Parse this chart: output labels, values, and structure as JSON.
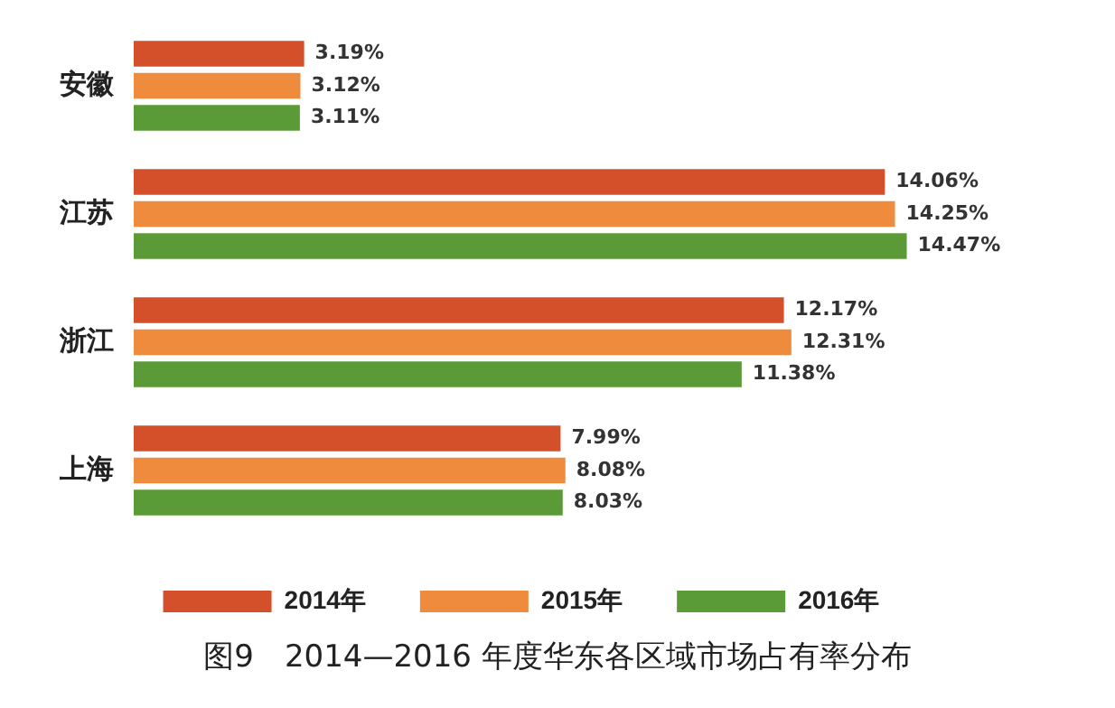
{
  "chart_data": {
    "type": "bar",
    "orientation": "horizontal",
    "title": "图9　2014—2016 年度华东各区域市场占有率分布",
    "categories": [
      "安徽",
      "江苏",
      "浙江",
      "上海"
    ],
    "series": [
      {
        "name": "2014年",
        "color": "#d4502a",
        "values": [
          3.19,
          14.06,
          12.17,
          7.99
        ],
        "value_labels": [
          "3.19%",
          "14.06%",
          "12.17%",
          "7.99%"
        ]
      },
      {
        "name": "2015年",
        "color": "#ee8b3d",
        "values": [
          3.12,
          14.25,
          12.31,
          8.08
        ],
        "value_labels": [
          "3.12%",
          "14.25%",
          "12.31%",
          "8.08%"
        ]
      },
      {
        "name": "2016年",
        "color": "#5b9b37",
        "values": [
          3.11,
          14.47,
          11.38,
          8.03
        ],
        "value_labels": [
          "3.11%",
          "14.47%",
          "11.38%",
          "8.03%"
        ]
      }
    ],
    "legend": "bottom"
  }
}
